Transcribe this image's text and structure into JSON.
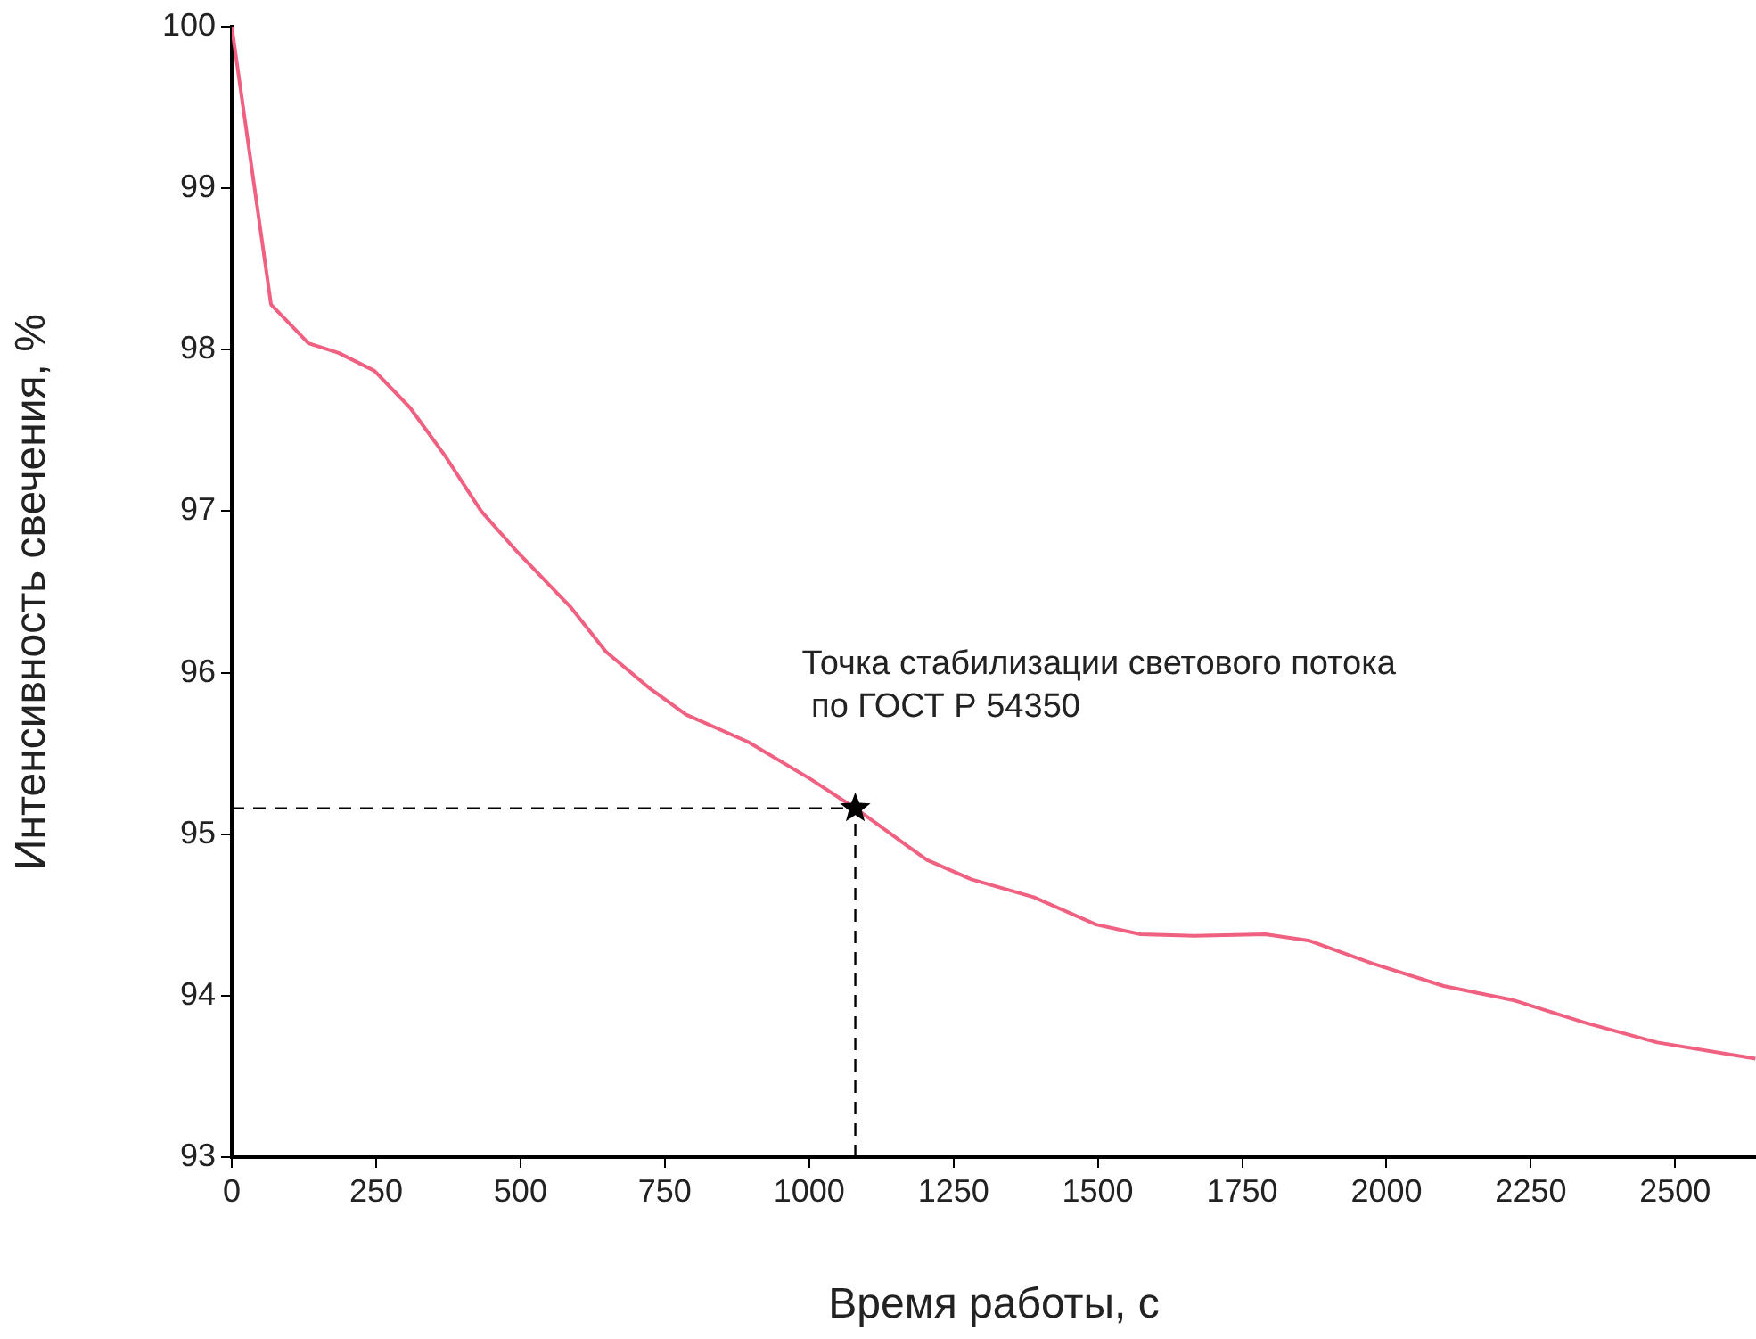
{
  "chart_data": {
    "type": "line",
    "xlabel": "Время работы, с",
    "ylabel": "Интенсивность свечения, %",
    "xlim": [
      0,
      2640
    ],
    "ylim": [
      93,
      100
    ],
    "xticks": [
      0,
      250,
      500,
      750,
      1000,
      1250,
      1500,
      1750,
      2000,
      2250,
      2500
    ],
    "yticks": [
      93,
      94,
      95,
      96,
      97,
      98,
      99,
      100
    ],
    "grid": false,
    "legend": false,
    "marker": "none",
    "line_style": "solid",
    "series": [
      {
        "color": "#f06080",
        "x": [
          0,
          68,
          133,
          185,
          247,
          309,
          370,
          432,
          494,
          586,
          648,
          725,
          787,
          895,
          1003,
          1080,
          1142,
          1204,
          1281,
          1389,
          1497,
          1574,
          1667,
          1790,
          1867,
          1975,
          2099,
          2222,
          2346,
          2469,
          2639
        ],
        "values": [
          100,
          98.28,
          98.04,
          97.98,
          97.87,
          97.64,
          97.34,
          97.0,
          96.75,
          96.41,
          96.13,
          95.9,
          95.74,
          95.57,
          95.34,
          95.16,
          95.0,
          94.84,
          94.72,
          94.61,
          94.44,
          94.38,
          94.37,
          94.38,
          94.34,
          94.2,
          94.06,
          93.97,
          93.83,
          93.71,
          93.61
        ]
      },
      {
        "type": "scatter",
        "color": "#000000",
        "marker": "star",
        "x": [
          1080
        ],
        "values": [
          95.16
        ]
      }
    ],
    "ref_lines": [
      {
        "axis": "x",
        "value": 1080,
        "color": "#000000",
        "line_style": "dashed"
      },
      {
        "axis": "y",
        "value": 95.16,
        "color": "#000000",
        "line_style": "dashed"
      }
    ],
    "annotations": [
      {
        "text": "Точка стабилизации светового потока\n по ГОСТ Р 54350",
        "x": 1080,
        "y": 95.16
      }
    ]
  }
}
